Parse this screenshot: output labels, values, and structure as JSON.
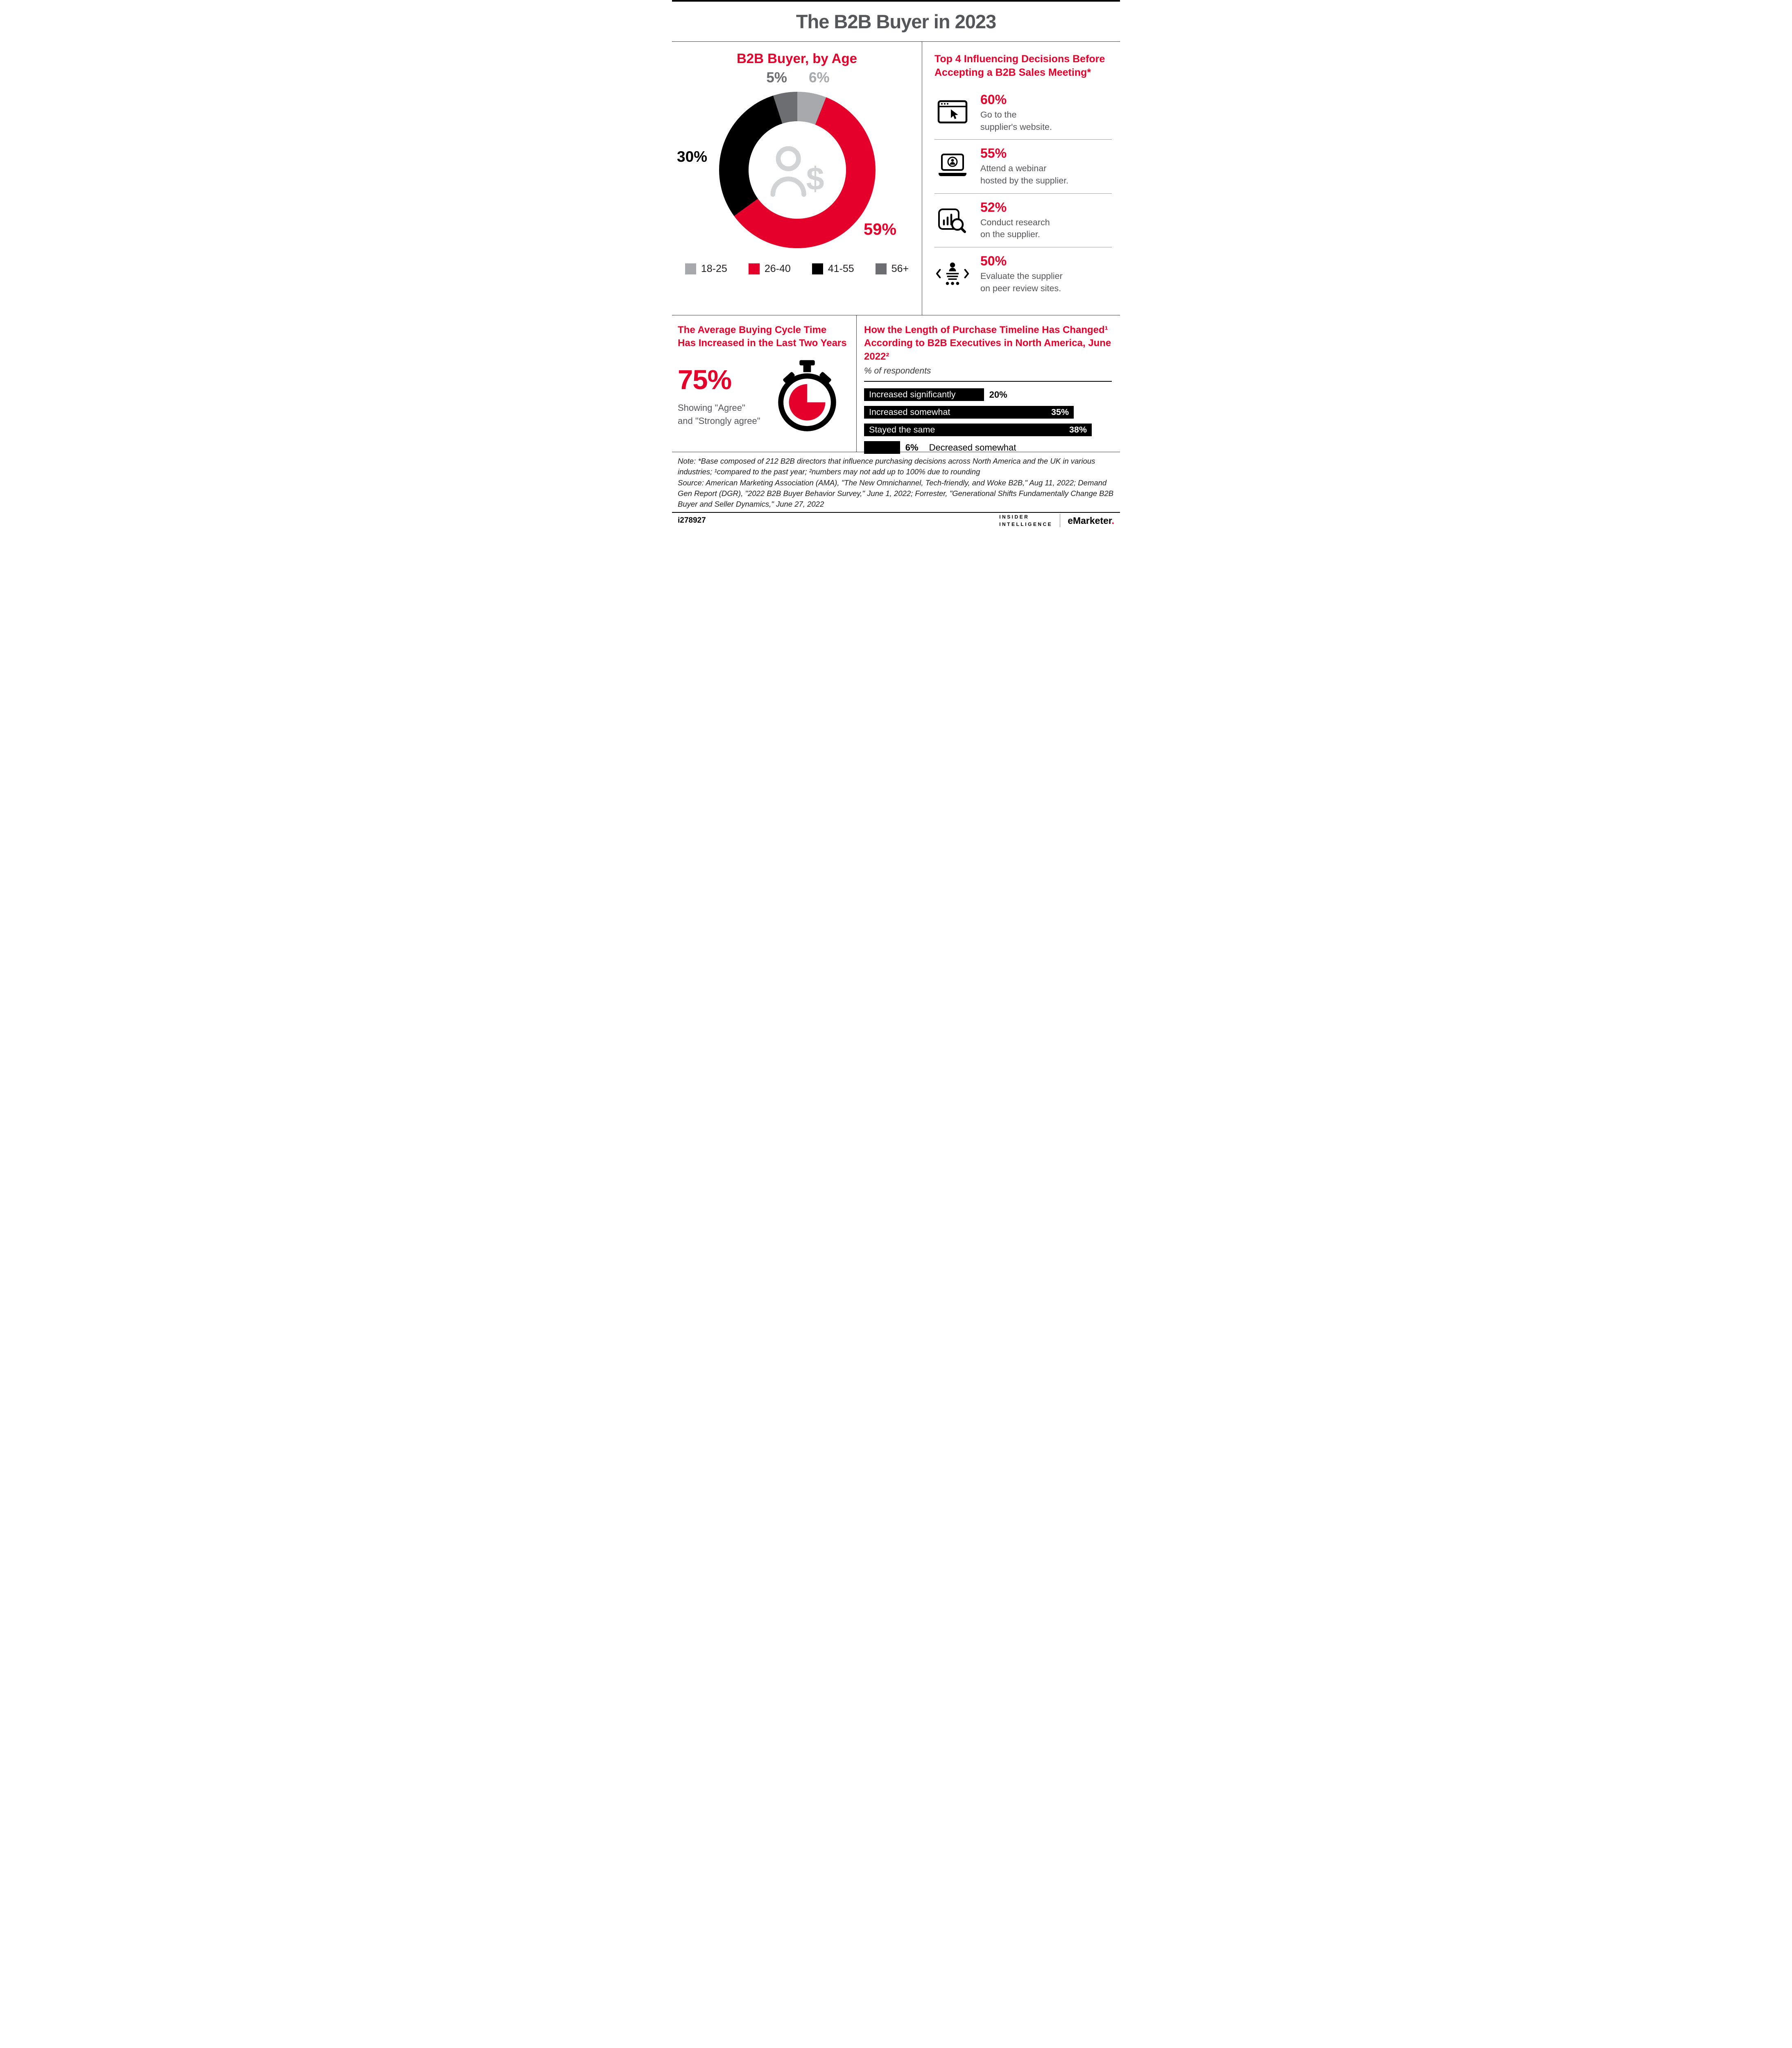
{
  "page": {
    "title": "The B2B Buyer in 2023"
  },
  "colors": {
    "red": "#e4002b",
    "black": "#000000",
    "gray_dark": "#6d6e71",
    "gray_light": "#a7a9ac",
    "title_gray": "#54565a",
    "body_gray": "#55565a"
  },
  "age_section": {
    "title": "B2B Buyer, by Age",
    "labels": {
      "pct_56plus": "5%",
      "pct_18_25": "6%",
      "pct_41_55": "30%",
      "pct_26_40": "59%"
    },
    "legend": [
      {
        "label": "18-25",
        "color": "#a7a9ac"
      },
      {
        "label": "26-40",
        "color": "#e4002b"
      },
      {
        "label": "41-55",
        "color": "#000000"
      },
      {
        "label": "56+",
        "color": "#6d6e71"
      }
    ]
  },
  "top4_section": {
    "title_line1": "Top 4 Influencing Decisions Before",
    "title_line2": "Accepting a B2B Sales Meeting*",
    "items": [
      {
        "pct": "60%",
        "line1": "Go to the",
        "line2": "supplier's website.",
        "icon": "browser-cursor-icon"
      },
      {
        "pct": "55%",
        "line1": "Attend a webinar",
        "line2": "hosted by the supplier.",
        "icon": "webinar-laptop-icon"
      },
      {
        "pct": "52%",
        "line1": "Conduct research",
        "line2": "on the supplier.",
        "icon": "research-magnifier-icon"
      },
      {
        "pct": "50%",
        "line1": "Evaluate the supplier",
        "line2": "on peer review sites.",
        "icon": "peer-review-icon"
      }
    ]
  },
  "cycle_section": {
    "title_line1": "The Average Buying Cycle Time",
    "title_line2": "Has Increased in the Last Two Years",
    "stat": "75%",
    "caption_line1": "Showing \"Agree\"",
    "caption_line2": "and \"Strongly agree\""
  },
  "timeline_section": {
    "title_line1": "How the Length of Purchase Timeline Has Changed¹",
    "title_line2": "According to B2B Executives in North America, June 2022²",
    "subtitle": "% of respondents",
    "bars": [
      {
        "label": "Increased significantly",
        "value": "20%",
        "value_position": "outside"
      },
      {
        "label": "Increased somewhat",
        "value": "35%",
        "value_position": "inside"
      },
      {
        "label": "Stayed the same",
        "value": "38%",
        "value_position": "inside"
      },
      {
        "label": "Decreased somewhat",
        "value": "6%",
        "value_position": "outside"
      }
    ]
  },
  "notes": {
    "note": "Note: *Base composed of 212 B2B directors that influence purchasing decisions across North America and the UK in various industries; ¹compared to the past year; ²numbers may not add up to 100% due to rounding",
    "source": "Source: American Marketing Association (AMA), \"The New Omnichannel, Tech-friendly, and Woke B2B,\" Aug 11, 2022; Demand Gen Report (DGR), \"2022 B2B Buyer Behavior Survey,\" June 1, 2022; Forrester, \"Generational Shifts Fundamentally Change B2B Buyer and Seller Dynamics,\" June 27, 2022"
  },
  "footer": {
    "chart_id": "i278927",
    "insider_line1": "INSIDER",
    "insider_line2": "INTELLIGENCE",
    "emarketer": "eMarketer",
    "emarketer_dot": "."
  },
  "chart_data": [
    {
      "type": "pie",
      "subtype": "donut",
      "title": "B2B Buyer, by Age",
      "categories": [
        "18-25",
        "26-40",
        "41-55",
        "56+"
      ],
      "values": [
        6,
        59,
        30,
        5
      ],
      "unit": "%",
      "colors": [
        "#a7a9ac",
        "#e4002b",
        "#000000",
        "#6d6e71"
      ],
      "legend_position": "bottom",
      "order": "clockwise from top"
    },
    {
      "type": "bar",
      "title": "Top 4 Influencing Decisions Before Accepting a B2B Sales Meeting*",
      "categories": [
        "Go to the supplier's website.",
        "Attend a webinar hosted by the supplier.",
        "Conduct research on the supplier.",
        "Evaluate the supplier on peer review sites."
      ],
      "values": [
        60,
        55,
        52,
        50
      ],
      "unit": "%"
    },
    {
      "type": "bar",
      "orientation": "horizontal",
      "title": "How the Length of Purchase Timeline Has Changed¹ According to B2B Executives in North America, June 2022²",
      "subtitle": "% of respondents",
      "categories": [
        "Increased significantly",
        "Increased somewhat",
        "Stayed the same",
        "Decreased somewhat"
      ],
      "values": [
        20,
        35,
        38,
        6
      ],
      "unit": "%",
      "xlim": [
        0,
        38
      ],
      "bar_color": "#000000"
    },
    {
      "type": "stat",
      "title": "The Average Buying Cycle Time Has Increased in the Last Two Years",
      "value": 75,
      "unit": "%",
      "caption": "Showing \"Agree\" and \"Strongly agree\""
    }
  ]
}
